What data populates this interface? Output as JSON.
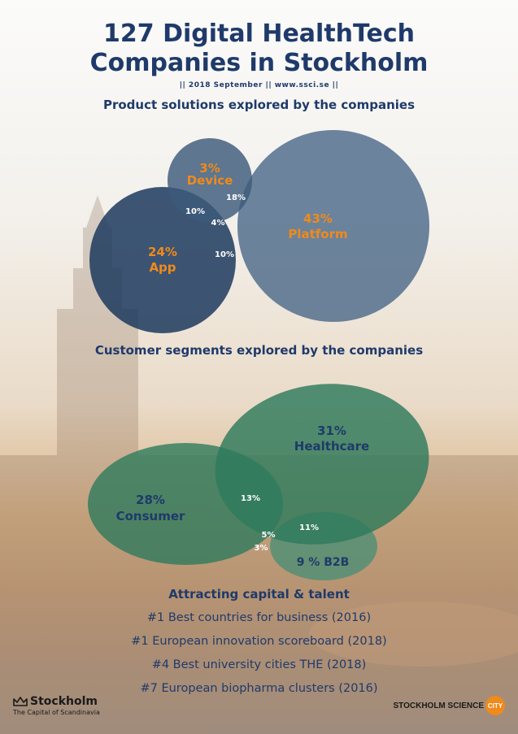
{
  "header": {
    "title_line1": "127 Digital HealthTech",
    "title_line2": "Companies in Stockholm",
    "subtitle": "||  2018 September  ||  www.ssci.se  ||"
  },
  "sections": {
    "product_title": "Product solutions explored by the companies",
    "customer_title": "Customer segments explored by the companies"
  },
  "colors": {
    "blue_dark": "#1c3a5e",
    "blue_slate": "#4d6a8a",
    "green": "#2e7a5c",
    "green_light": "#4f8f74",
    "orange_text": "#f08a1c",
    "navy_text": "#1f3a6a",
    "white_text": "#ffffff"
  },
  "product_venn": {
    "sets": [
      {
        "id": "device",
        "pct": "3%",
        "label": "Device"
      },
      {
        "id": "app",
        "pct": "24%",
        "label": "App"
      },
      {
        "id": "platform",
        "pct": "43%",
        "label": "Platform"
      }
    ],
    "overlaps": {
      "device_platform": "18%",
      "device_app": "10%",
      "all_three": "4%",
      "app_platform": "10%"
    }
  },
  "customer_venn": {
    "sets": [
      {
        "id": "healthcare",
        "pct": "31%",
        "label": "Healthcare"
      },
      {
        "id": "consumer",
        "pct": "28%",
        "label": "Consumer"
      },
      {
        "id": "b2b",
        "label": "9 % B2B"
      }
    ],
    "overlaps": {
      "consumer_healthcare": "13%",
      "healthcare_b2b": "11%",
      "all_three": "5%",
      "consumer_b2b": "3%"
    }
  },
  "facts": {
    "title": "Attracting capital & talent",
    "items": [
      "#1 Best countries for business (2016)",
      "#1 European innovation scoreboard (2018)",
      "#4 Best university cities THE (2018)",
      "#7 European biopharma clusters (2016)"
    ]
  },
  "logos": {
    "stockholm_name": "Stockholm",
    "stockholm_tagline": "The Capital of Scandinavia",
    "ssc_text": "STOCKHOLM SCIENCE",
    "ssc_circle": "CITY"
  }
}
